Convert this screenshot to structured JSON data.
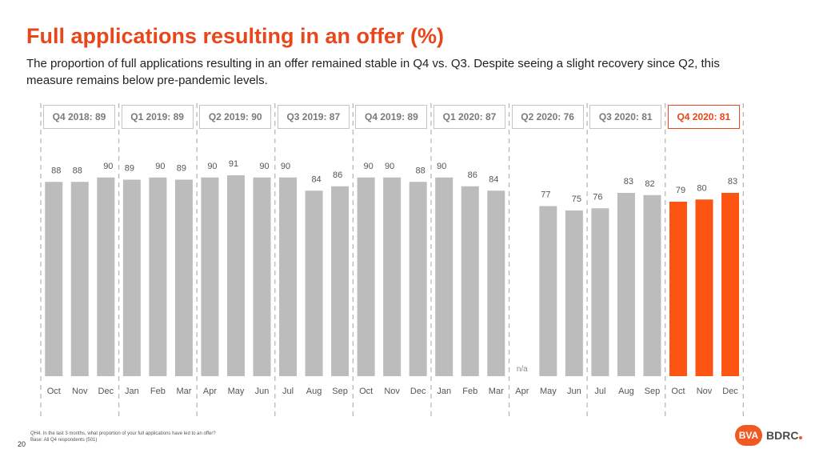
{
  "title": "Full applications resulting in an offer (%)",
  "subtitle": "The proportion of full applications resulting in an offer remained stable in Q4 vs. Q3. Despite seeing a slight recovery since Q2, this measure remains below pre-pandemic levels.",
  "quarters": [
    {
      "label": "Q4 2018: 89"
    },
    {
      "label": "Q1 2019: 89"
    },
    {
      "label": "Q2 2019: 90"
    },
    {
      "label": "Q3 2019: 87"
    },
    {
      "label": "Q4 2019: 89"
    },
    {
      "label": "Q1 2020: 87"
    },
    {
      "label": "Q2 2020: 76"
    },
    {
      "label": "Q3 2020: 81"
    },
    {
      "label": "Q4 2020: 81",
      "current": true
    }
  ],
  "chart_data": {
    "type": "bar",
    "title": "Full applications resulting in an offer (%)",
    "categories": [
      "Oct",
      "Nov",
      "Dec",
      "Jan",
      "Feb",
      "Mar",
      "Apr",
      "May",
      "Jun",
      "Jul",
      "Aug",
      "Sep",
      "Oct",
      "Nov",
      "Dec",
      "Jan",
      "Feb",
      "Mar",
      "Apr",
      "May",
      "Jun",
      "Jul",
      "Aug",
      "Sep",
      "Oct",
      "Nov",
      "Dec"
    ],
    "values": [
      88,
      88,
      90,
      89,
      90,
      89,
      90,
      91,
      90,
      90,
      84,
      86,
      90,
      90,
      88,
      90,
      86,
      84,
      null,
      77,
      75,
      76,
      83,
      82,
      79,
      80,
      83
    ],
    "missing_label": "n/a",
    "highlight_from_index": 24,
    "ylim": [
      0,
      100
    ],
    "xlabel": "",
    "ylabel": ""
  },
  "colors": {
    "accent": "#e8461b",
    "highlight_bar": "#fc5513",
    "grey_bar": "#bcbcbc",
    "separator": "#b8b8b8"
  },
  "footnote": {
    "question": "QH4. In the last 3 months, what proportion of your full applications have led to an offer?",
    "base": "Base: All Q4 respondents (501)"
  },
  "page_number": "20",
  "logo": {
    "badge": "BVA",
    "text": "BDRC"
  }
}
